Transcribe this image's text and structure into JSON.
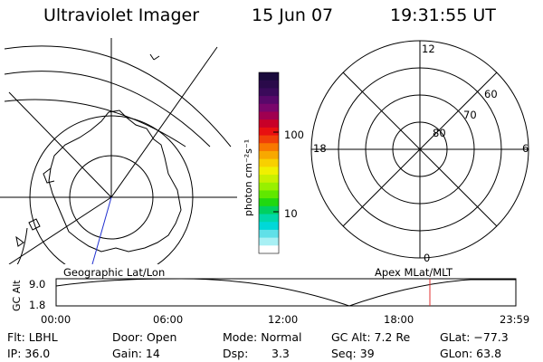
{
  "header": {
    "title": "Ultraviolet Imager",
    "date": "15 Jun 07",
    "time": "19:31:55 UT"
  },
  "colorbar": {
    "unit_label": "photon cm⁻²s⁻¹",
    "ticks": [
      "100",
      "10"
    ],
    "colors": [
      "#1a0a3c",
      "#2a0a4a",
      "#3a0a5a",
      "#58086a",
      "#7a066c",
      "#a00050",
      "#c80028",
      "#e81010",
      "#f04008",
      "#f87800",
      "#f8a800",
      "#f8d000",
      "#f0f000",
      "#c8f000",
      "#98f000",
      "#60e800",
      "#20d810",
      "#00d060",
      "#00d8a8",
      "#00d8d8",
      "#60e0e8",
      "#a8f0f4",
      "#ffffff"
    ]
  },
  "polar": {
    "top_label": "12",
    "bottom_label": "0",
    "left_label": "18",
    "right_label": "6",
    "ring_labels": [
      "80",
      "70",
      "60"
    ]
  },
  "timeline": {
    "left_caption": "Geographic Lat/Lon",
    "right_caption": "Apex MLat/MLT",
    "yaxis_label": "GC Alt",
    "y_ticks": [
      "9.0",
      "1.8"
    ],
    "x_ticks": [
      "00:00",
      "06:00",
      "12:00",
      "18:00",
      "23:59"
    ],
    "marker_color": "#e03030"
  },
  "info": {
    "flt": "Flt: LBHL",
    "ip": "IP: 36.0",
    "door": "Door: Open",
    "gain": "Gain: 14",
    "mode": "Mode: Normal",
    "dsp_label": "Dsp:",
    "dsp_value": "3.3",
    "gc_alt": "GC Alt: 7.2 Re",
    "seq": "Seq: 39",
    "glat": "GLat: −77.3",
    "glon": "GLon: 63.8"
  }
}
